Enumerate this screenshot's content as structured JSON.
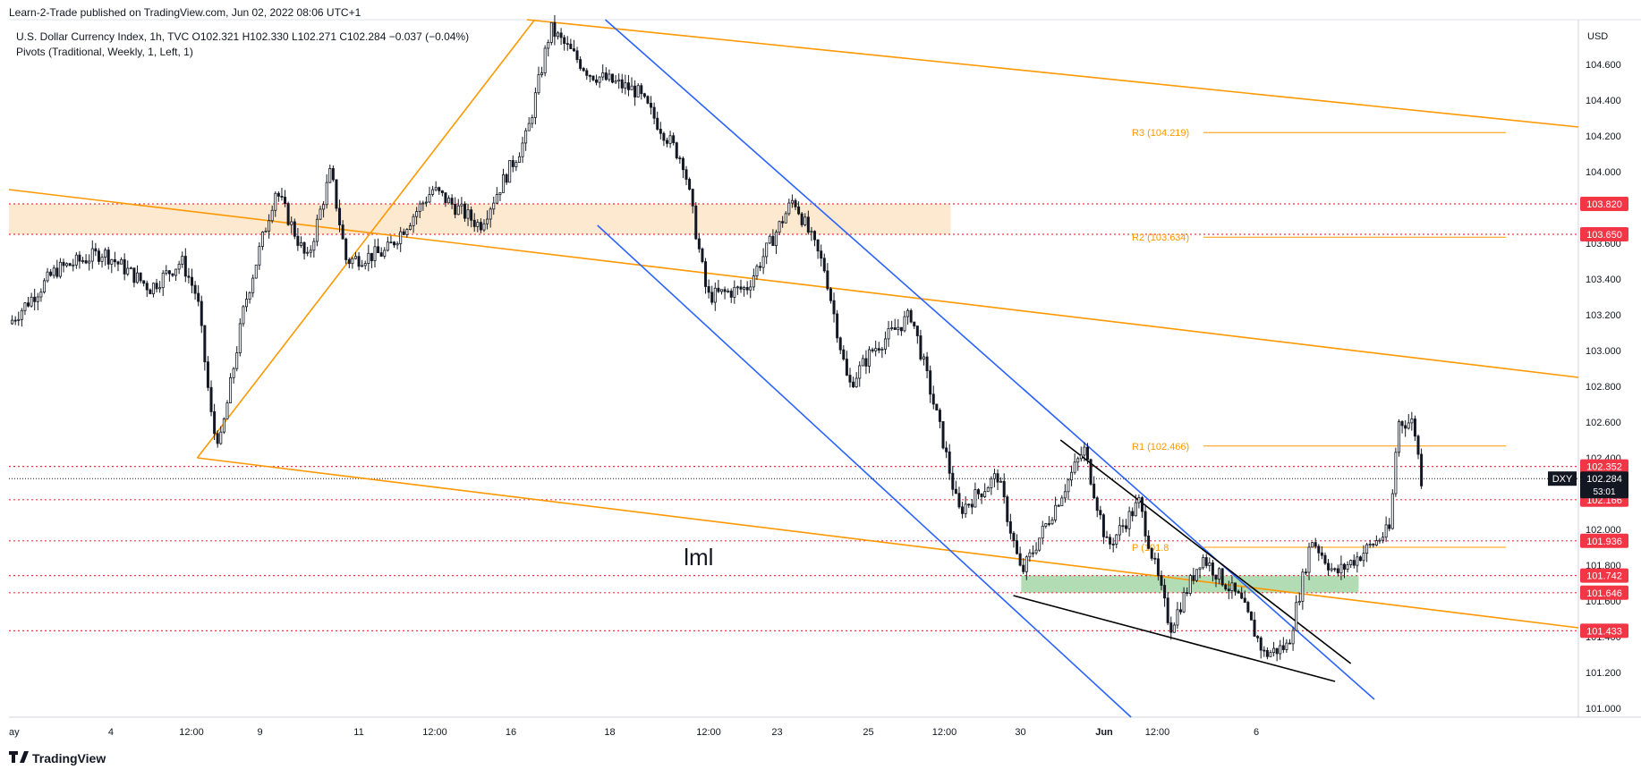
{
  "header": {
    "published": "Learn-2-Trade published on TradingView.com, Jun 02, 2022 08:06 UTC+1",
    "symbol_line": "U.S. Dollar Currency Index, 1h, TVC  O102.321  H102.330  L102.271  C102.284  −0.037 (−0.04%)",
    "indicator_line": "Pivots (Traditional, Weekly, 1, Left, 1)"
  },
  "footer": {
    "brand": "TradingView"
  },
  "chart_data": {
    "type": "candlestick",
    "symbol": "DXY",
    "timeframe": "1h",
    "currency": "USD",
    "ylim": [
      100.95,
      104.85
    ],
    "y_ticks": [
      "101.000",
      "101.200",
      "101.400",
      "101.600",
      "101.800",
      "102.000",
      "102.200",
      "102.400",
      "102.600",
      "102.800",
      "103.000",
      "103.200",
      "103.400",
      "103.600",
      "103.800",
      "104.000",
      "104.200",
      "104.400",
      "104.600"
    ],
    "x_ticks": [
      "ay",
      "4",
      "12:00",
      "9",
      "11",
      "12:00",
      "16",
      "18",
      "12:00",
      "23",
      "25",
      "12:00",
      "30",
      "Jun",
      "12:00",
      "6"
    ],
    "last_price": {
      "symbol": "DXY",
      "value": "102.284",
      "countdown": "53:01",
      "price": 102.284
    },
    "price_labels": [
      {
        "text": "103.820",
        "price": 103.82
      },
      {
        "text": "103.650",
        "price": 103.65
      },
      {
        "text": "102.352",
        "price": 102.352
      },
      {
        "text": "102.166",
        "price": 102.166
      },
      {
        "text": "101.936",
        "price": 101.936
      },
      {
        "text": "101.742",
        "price": 101.742
      },
      {
        "text": "101.646",
        "price": 101.646
      },
      {
        "text": "101.433",
        "price": 101.433
      }
    ],
    "pivots": [
      {
        "label": "R3 (104.219)",
        "price": 104.219
      },
      {
        "label": "R2 (103.634)",
        "price": 103.634
      },
      {
        "label": "R1 (102.466)",
        "price": 102.466
      },
      {
        "label": "P (101.8",
        "price": 101.9
      }
    ],
    "annotations": [
      {
        "text": "lml",
        "price": 101.85
      }
    ],
    "zones": [
      {
        "name": "resistance-zone",
        "price_top": 103.82,
        "price_bottom": 103.65,
        "color": "#fde9cf"
      },
      {
        "name": "support-zone",
        "price_top": 101.742,
        "price_bottom": 101.646,
        "color": "#a5d6a7"
      }
    ],
    "price_path": [
      {
        "x": 0.0,
        "p": 103.15
      },
      {
        "x": 0.03,
        "p": 103.45
      },
      {
        "x": 0.06,
        "p": 103.55
      },
      {
        "x": 0.09,
        "p": 103.35
      },
      {
        "x": 0.11,
        "p": 103.5
      },
      {
        "x": 0.12,
        "p": 103.3
      },
      {
        "x": 0.13,
        "p": 102.55
      },
      {
        "x": 0.135,
        "p": 102.5
      },
      {
        "x": 0.15,
        "p": 103.25
      },
      {
        "x": 0.17,
        "p": 103.9
      },
      {
        "x": 0.19,
        "p": 103.5
      },
      {
        "x": 0.205,
        "p": 104.0
      },
      {
        "x": 0.215,
        "p": 103.5
      },
      {
        "x": 0.24,
        "p": 103.55
      },
      {
        "x": 0.27,
        "p": 103.9
      },
      {
        "x": 0.3,
        "p": 103.7
      },
      {
        "x": 0.33,
        "p": 104.2
      },
      {
        "x": 0.345,
        "p": 104.8
      },
      {
        "x": 0.37,
        "p": 104.55
      },
      {
        "x": 0.4,
        "p": 104.45
      },
      {
        "x": 0.43,
        "p": 104.05
      },
      {
        "x": 0.445,
        "p": 103.3
      },
      {
        "x": 0.47,
        "p": 103.35
      },
      {
        "x": 0.5,
        "p": 103.85
      },
      {
        "x": 0.52,
        "p": 103.45
      },
      {
        "x": 0.535,
        "p": 102.8
      },
      {
        "x": 0.55,
        "p": 103.0
      },
      {
        "x": 0.575,
        "p": 103.2
      },
      {
        "x": 0.595,
        "p": 102.5
      },
      {
        "x": 0.605,
        "p": 102.1
      },
      {
        "x": 0.63,
        "p": 102.3
      },
      {
        "x": 0.645,
        "p": 101.75
      },
      {
        "x": 0.665,
        "p": 102.1
      },
      {
        "x": 0.685,
        "p": 102.45
      },
      {
        "x": 0.7,
        "p": 101.9
      },
      {
        "x": 0.72,
        "p": 102.15
      },
      {
        "x": 0.74,
        "p": 101.45
      },
      {
        "x": 0.76,
        "p": 101.85
      },
      {
        "x": 0.785,
        "p": 101.6
      },
      {
        "x": 0.8,
        "p": 101.3
      },
      {
        "x": 0.815,
        "p": 101.35
      },
      {
        "x": 0.83,
        "p": 101.95
      },
      {
        "x": 0.845,
        "p": 101.75
      },
      {
        "x": 0.86,
        "p": 101.85
      },
      {
        "x": 0.88,
        "p": 102.0
      },
      {
        "x": 0.885,
        "p": 102.6
      },
      {
        "x": 0.895,
        "p": 102.6
      },
      {
        "x": 0.9,
        "p": 102.28
      }
    ],
    "trendlines": [
      {
        "name": "orange-upper-channel",
        "color": "#ff9800",
        "from": {
          "x": 0.33,
          "p": 104.85
        },
        "to": {
          "x": 1.0,
          "p": 104.25
        }
      },
      {
        "name": "orange-mid-channel",
        "color": "#ff9800",
        "from": {
          "x": 0.0,
          "p": 103.9
        },
        "to": {
          "x": 1.0,
          "p": 102.85
        }
      },
      {
        "name": "orange-lower-channel",
        "color": "#ff9800",
        "from": {
          "x": 0.12,
          "p": 102.4
        },
        "to": {
          "x": 1.0,
          "p": 101.45
        }
      },
      {
        "name": "orange-impulse-line",
        "color": "#ff9800",
        "from": {
          "x": 0.12,
          "p": 102.4
        },
        "to": {
          "x": 0.335,
          "p": 104.85
        }
      },
      {
        "name": "blue-channel-upper",
        "color": "#2962ff",
        "from": {
          "x": 0.38,
          "p": 104.85
        },
        "to": {
          "x": 0.87,
          "p": 101.05
        }
      },
      {
        "name": "blue-channel-lower",
        "color": "#2962ff",
        "from": {
          "x": 0.375,
          "p": 103.7
        },
        "to": {
          "x": 0.715,
          "p": 100.95
        }
      },
      {
        "name": "wedge-upper",
        "color": "#000000",
        "from": {
          "x": 0.67,
          "p": 102.5
        },
        "to": {
          "x": 0.855,
          "p": 101.25
        }
      },
      {
        "name": "wedge-lower",
        "color": "#000000",
        "from": {
          "x": 0.64,
          "p": 101.63
        },
        "to": {
          "x": 0.845,
          "p": 101.15
        }
      }
    ]
  }
}
